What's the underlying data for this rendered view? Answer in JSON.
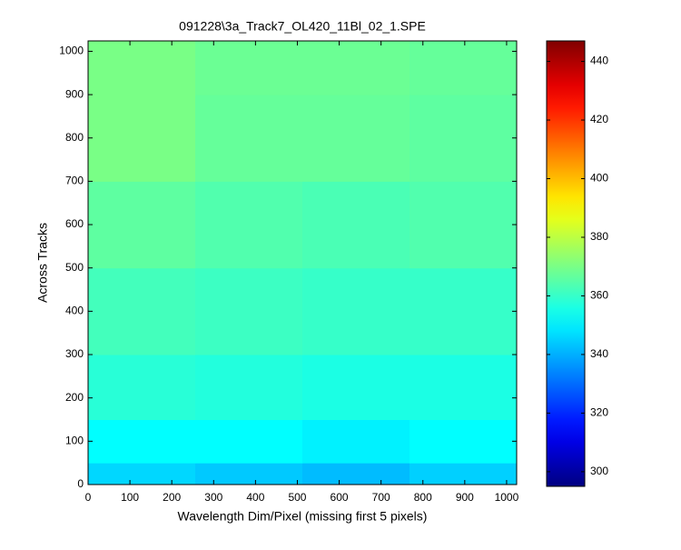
{
  "chart_data": {
    "type": "heatmap",
    "title": "091228\\3a_Track7_OL420_11Bl_02_1.SPE",
    "x_label": "Wavelength Dim/Pixel (missing first 5 pixels)",
    "y_label": "Across Tracks",
    "colormap": "jet",
    "x_edges": [
      0,
      256,
      512,
      768,
      1024
    ],
    "y_edges": [
      0,
      50,
      150,
      300,
      500,
      700,
      900,
      1024
    ],
    "z": [
      [
        346,
        344,
        342,
        345
      ],
      [
        352,
        352,
        350,
        352
      ],
      [
        358,
        357,
        356,
        356
      ],
      [
        362,
        361,
        360,
        360
      ],
      [
        366,
        364,
        363,
        364
      ],
      [
        370,
        367,
        367,
        366
      ],
      [
        370,
        368,
        368,
        367
      ]
    ],
    "xlim": [
      0,
      1024
    ],
    "ylim": [
      0,
      1024
    ],
    "xticks": [
      0,
      100,
      200,
      300,
      400,
      500,
      600,
      700,
      800,
      900,
      1000
    ],
    "yticks": [
      0,
      100,
      200,
      300,
      400,
      500,
      600,
      700,
      800,
      900,
      1000
    ],
    "clim": [
      295,
      447
    ],
    "cticks": [
      300,
      320,
      340,
      360,
      380,
      400,
      420,
      440
    ]
  }
}
